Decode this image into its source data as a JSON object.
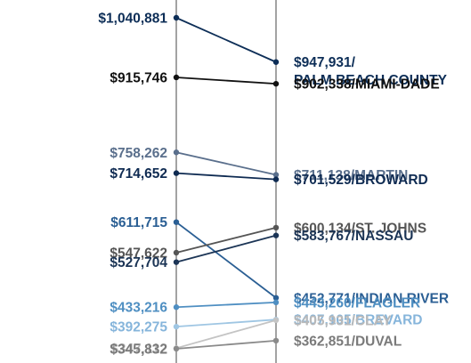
{
  "chart_data": {
    "type": "slope",
    "title": "",
    "xlabel": "",
    "ylabel": "",
    "y_unit": "USD",
    "ylim": [
      340000,
      1045000
    ],
    "grid": false,
    "legend": "none",
    "series": [
      {
        "name": "PALM BEACH COUNTY",
        "left_label": "$1,040,881",
        "right_label": "$947,931/",
        "right_label_line2": "PALM BEACH COUNTY",
        "start": 1040881,
        "end": 947931,
        "color": "#0d2e57",
        "text_color": "#0d2e57"
      },
      {
        "name": "MIAMI-DADE",
        "left_label": "$915,746",
        "right_label": "$902,338/MIAMI-DADE",
        "start": 915746,
        "end": 902338,
        "color": "#111111",
        "text_color": "#111111"
      },
      {
        "name": "MARTIN",
        "left_label": "$758,262",
        "right_label": "$711,138/MARTIN",
        "start": 758262,
        "end": 711138,
        "color": "#5a6f8c",
        "text_color": "#5a6f8c"
      },
      {
        "name": "BROWARD",
        "left_label": "$714,652",
        "right_label": "$701,529/BROWARD",
        "start": 714652,
        "end": 701529,
        "color": "#0f2b52",
        "text_color": "#0f2b52"
      },
      {
        "name": "INDIAN RIVER",
        "left_label": "$611,715",
        "right_label": "$452,771/INDIAN RIVER",
        "start": 611715,
        "end": 452771,
        "color": "#2b5f94",
        "text_color": "#2b5f94"
      },
      {
        "name": "ST. JOHNS",
        "left_label": "$547,622",
        "right_label": "$600,134/ST. JOHNS",
        "start": 547622,
        "end": 600134,
        "color": "#555555",
        "text_color": "#555555"
      },
      {
        "name": "NASSAU",
        "left_label": "$527,704",
        "right_label": "$583,767/NASSAU",
        "start": 527704,
        "end": 583767,
        "color": "#1c3556",
        "text_color": "#1c3556"
      },
      {
        "name": "FLAGLER",
        "left_label": "$433,216",
        "right_label": "$443,260/FLAGLER",
        "start": 433216,
        "end": 443260,
        "color": "#4f8fc2",
        "text_color": "#4f8fc2"
      },
      {
        "name": "BREVARD",
        "left_label": "$392,275",
        "right_label": "$407,105/BREVARD",
        "start": 392275,
        "end": 407105,
        "color": "#9fc6e3",
        "text_color": "#86b5db"
      },
      {
        "name": "CLAY",
        "left_label": "$347,112",
        "right_label": "$405,931/CLAY",
        "start": 347112,
        "end": 405931,
        "color": "#c4c4c4",
        "text_color": "#b9b9b9"
      },
      {
        "name": "DUVAL",
        "left_label": "$345,832",
        "right_label": "$362,851/DUVAL",
        "start": 345832,
        "end": 362851,
        "color": "#8a8a8a",
        "text_color": "#7a7a7a"
      }
    ]
  }
}
